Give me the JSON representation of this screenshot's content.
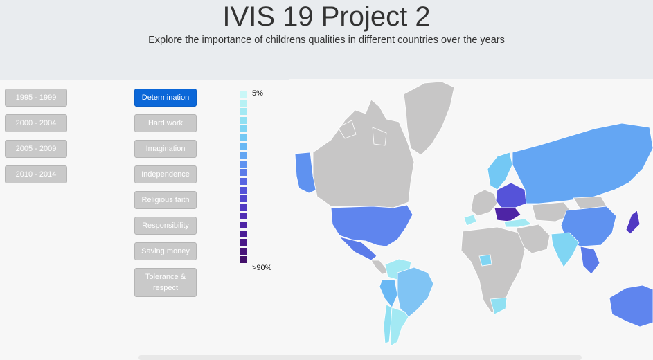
{
  "header": {
    "title": "IVIS 19 Project 2",
    "subtitle": "Explore the importance of childrens qualities in different countries over the years"
  },
  "periods": [
    "1995 - 1999",
    "2000 - 2004",
    "2005 - 2009",
    "2010 - 2014"
  ],
  "qualities": [
    {
      "label": "Determination",
      "active": true
    },
    {
      "label": "Hard work",
      "active": false
    },
    {
      "label": "Imagination",
      "active": false
    },
    {
      "label": "Independence",
      "active": false
    },
    {
      "label": "Religious faith",
      "active": false
    },
    {
      "label": "Responsibility",
      "active": false
    },
    {
      "label": "Saving money",
      "active": false
    },
    {
      "label": "Tolerance & respect",
      "active": false
    }
  ],
  "legend": {
    "min_label": "5%",
    "max_label": ">90%",
    "colors": [
      "#c9f7f7",
      "#b6f1f4",
      "#a3e9f3",
      "#90e0f2",
      "#80d5f3",
      "#73c8f4",
      "#69b8f4",
      "#64a6f3",
      "#5f92f0",
      "#5b7be9",
      "#5865e2",
      "#5553d9",
      "#5246ce",
      "#5139c2",
      "#502db4",
      "#4e24a5",
      "#4b1d96",
      "#4a1888",
      "#48147a",
      "#43106b"
    ]
  },
  "map": {
    "no_data_color": "#c7c6c6",
    "regions": [
      {
        "name": "Canada",
        "color": "#c7c6c6"
      },
      {
        "name": "Alaska",
        "color": "#5f92f0"
      },
      {
        "name": "Greenland",
        "color": "#c7c6c6"
      },
      {
        "name": "United States",
        "color": "#5f85ee"
      },
      {
        "name": "Mexico",
        "color": "#5b7be9"
      },
      {
        "name": "Central America",
        "color": "#c7c6c6"
      },
      {
        "name": "Colombia",
        "color": "#a3e9f3"
      },
      {
        "name": "Brazil",
        "color": "#80c4f4"
      },
      {
        "name": "Peru",
        "color": "#69b8f4"
      },
      {
        "name": "Argentina",
        "color": "#a3e9f3"
      },
      {
        "name": "Chile",
        "color": "#90e0f2"
      },
      {
        "name": "Europe West",
        "color": "#c7c6c6"
      },
      {
        "name": "Scandinavia",
        "color": "#73c8f4"
      },
      {
        "name": "Eastern Europe",
        "color": "#5553d9"
      },
      {
        "name": "Balkans",
        "color": "#4e24a5"
      },
      {
        "name": "Turkey",
        "color": "#a3e9f3"
      },
      {
        "name": "Spain",
        "color": "#a3e9f3"
      },
      {
        "name": "Russia",
        "color": "#64a6f3"
      },
      {
        "name": "Kazakhstan",
        "color": "#c7c6c6"
      },
      {
        "name": "China",
        "color": "#5f92f0"
      },
      {
        "name": "Mongolia",
        "color": "#c7c6c6"
      },
      {
        "name": "India",
        "color": "#80d5f3"
      },
      {
        "name": "Japan",
        "color": "#5139c2"
      },
      {
        "name": "Southeast Asia",
        "color": "#5b7be9"
      },
      {
        "name": "Africa",
        "color": "#c7c6c6"
      },
      {
        "name": "Nigeria",
        "color": "#80d5f3"
      },
      {
        "name": "South Africa",
        "color": "#90e0f2"
      },
      {
        "name": "Middle East",
        "color": "#c7c6c6"
      },
      {
        "name": "Australia",
        "color": "#5f85ee"
      }
    ]
  }
}
